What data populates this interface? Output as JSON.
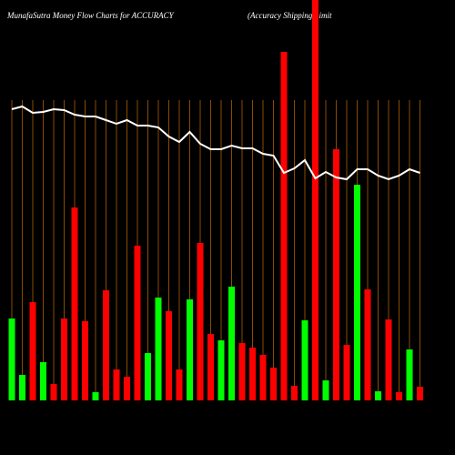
{
  "chart_data": {
    "type": "bar",
    "title": "MunafaSutra  Money Flow  Charts for ACCURACY",
    "subtitle": "(Accuracy Shipping Limit",
    "categories": [
      null,
      null,
      null,
      null,
      null,
      null,
      null,
      null,
      null,
      null,
      null,
      null,
      null,
      null,
      null,
      null,
      null,
      null,
      null,
      null,
      null,
      null,
      null,
      null,
      null,
      null,
      null,
      null,
      null,
      null,
      null,
      null,
      null,
      null,
      null,
      null,
      null,
      null,
      null,
      null
    ],
    "values": [
      90,
      28,
      108,
      42,
      18,
      90,
      212,
      87,
      9,
      121,
      34,
      26,
      170,
      52,
      113,
      98,
      34,
      111,
      173,
      73,
      66,
      125,
      63,
      58,
      50,
      36,
      383,
      16,
      88,
      440,
      22,
      276,
      61,
      237,
      122,
      10,
      89,
      9,
      56,
      15
    ],
    "colors": [
      "#00ff00",
      "#00ff00",
      "#ff0000",
      "#00ff00",
      "#ff0000",
      "#ff0000",
      "#ff0000",
      "#ff0000",
      "#00ff00",
      "#ff0000",
      "#ff0000",
      "#ff0000",
      "#ff0000",
      "#00ff00",
      "#00ff00",
      "#ff0000",
      "#ff0000",
      "#00ff00",
      "#ff0000",
      "#ff0000",
      "#00ff00",
      "#00ff00",
      "#ff0000",
      "#ff0000",
      "#ff0000",
      "#ff0000",
      "#ff0000",
      "#ff0000",
      "#00ff00",
      "#ff0000",
      "#00ff00",
      "#ff0000",
      "#ff0000",
      "#00ff00",
      "#ff0000",
      "#00ff00",
      "#ff0000",
      "#ff0000",
      "#00ff00",
      "#ff0000"
    ],
    "line_values": [
      320,
      323,
      316,
      317,
      320,
      319,
      314,
      312,
      312,
      308,
      304,
      308,
      302,
      302,
      300,
      290,
      284,
      295,
      282,
      276,
      276,
      280,
      277,
      277,
      271,
      269,
      250,
      255,
      264,
      244,
      251,
      245,
      243,
      254,
      254,
      247,
      243,
      247,
      254,
      250
    ],
    "line_color": "#ffffff",
    "grid_color": "#8b4a00",
    "ylim": [
      0,
      440
    ]
  }
}
